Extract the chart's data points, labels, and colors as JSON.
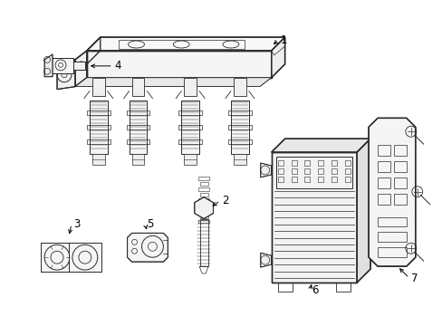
{
  "background_color": "#ffffff",
  "line_color": "#2a2a2a",
  "figsize": [
    4.89,
    3.6
  ],
  "dpi": 100,
  "label_fontsize": 8.5
}
